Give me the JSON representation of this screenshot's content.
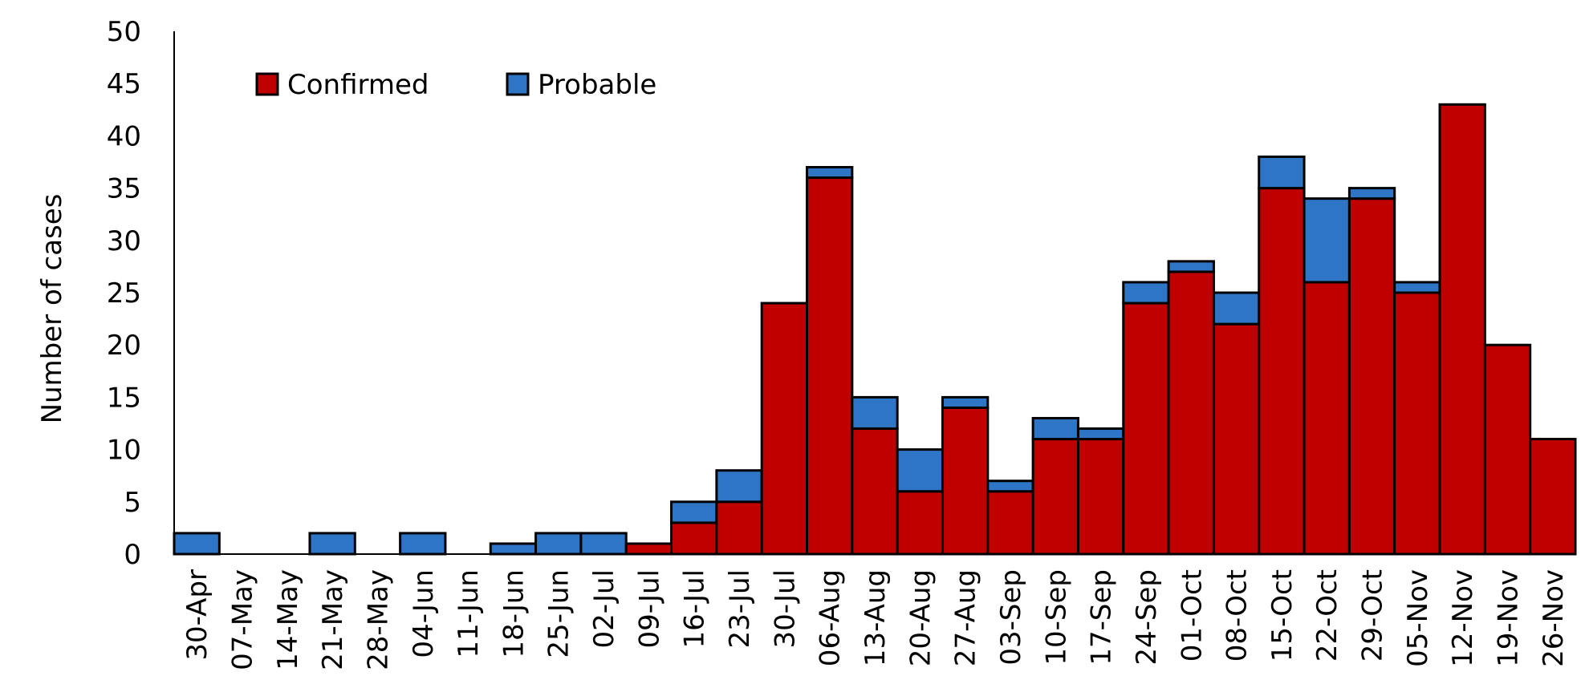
{
  "chart_data": {
    "type": "bar",
    "stacked": true,
    "ylabel": "Number of cases",
    "ylim": [
      0,
      50
    ],
    "yticks": [
      0,
      5,
      10,
      15,
      20,
      25,
      30,
      35,
      40,
      45,
      50
    ],
    "grid": false,
    "legend_position": "top-left",
    "categories": [
      "30-Apr",
      "07-May",
      "14-May",
      "21-May",
      "28-May",
      "04-Jun",
      "11-Jun",
      "18-Jun",
      "25-Jun",
      "02-Jul",
      "09-Jul",
      "16-Jul",
      "23-Jul",
      "30-Jul",
      "06-Aug",
      "13-Aug",
      "20-Aug",
      "27-Aug",
      "03-Sep",
      "10-Sep",
      "17-Sep",
      "24-Sep",
      "01-Oct",
      "08-Oct",
      "15-Oct",
      "22-Oct",
      "29-Oct",
      "05-Nov",
      "12-Nov",
      "19-Nov",
      "26-Nov"
    ],
    "series": [
      {
        "name": "Confirmed",
        "color": "#C00000",
        "values": [
          0,
          0,
          0,
          0,
          0,
          0,
          0,
          0,
          0,
          0,
          1,
          3,
          5,
          24,
          36,
          12,
          6,
          14,
          6,
          11,
          11,
          24,
          27,
          22,
          35,
          26,
          34,
          25,
          43,
          20,
          11
        ]
      },
      {
        "name": "Probable",
        "color": "#2E75C6",
        "values": [
          2,
          0,
          0,
          2,
          0,
          2,
          0,
          1,
          2,
          2,
          0,
          2,
          3,
          0,
          1,
          3,
          4,
          1,
          1,
          2,
          1,
          2,
          1,
          3,
          3,
          8,
          1,
          1,
          0,
          0,
          0
        ]
      }
    ]
  }
}
